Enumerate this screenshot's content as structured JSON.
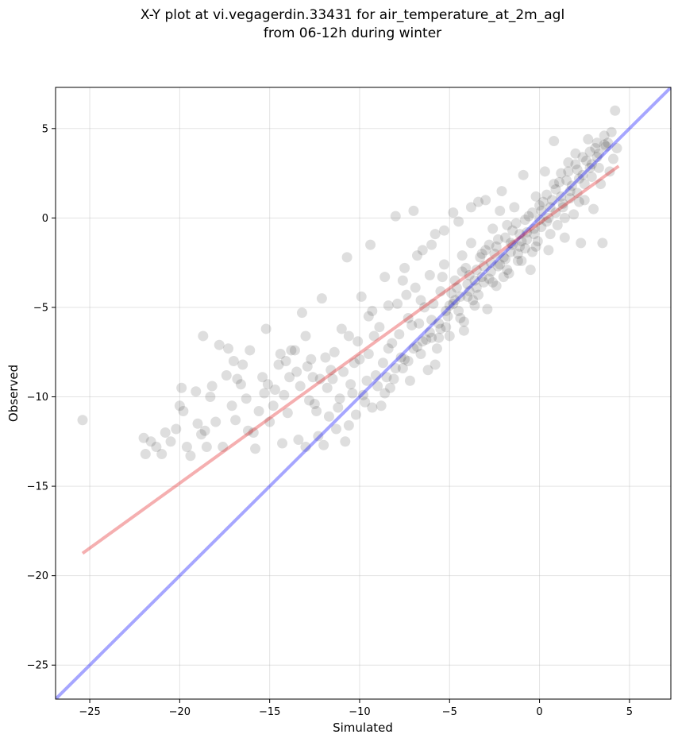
{
  "chart_data": {
    "type": "scatter",
    "title": [
      "X-Y plot at vi.vegagerdin.33431 for air_temperature_at_2m_agl",
      "from 06-12h during winter"
    ],
    "xlabel": "Simulated",
    "ylabel": "Observed",
    "xlim": [
      -26.9,
      7.3
    ],
    "ylim": [
      -26.9,
      7.3
    ],
    "xticks": [
      -25,
      -20,
      -15,
      -10,
      -5,
      0,
      5
    ],
    "yticks": [
      -25,
      -20,
      -15,
      -10,
      -5,
      0,
      5
    ],
    "grid": true,
    "colors": {
      "points": "#000000",
      "identity_line": "#0000ff",
      "fit_line": "#e31a1c"
    },
    "point_opacity": 0.08,
    "lines": [
      {
        "kind": "identity",
        "x": [
          -26.9,
          7.3
        ],
        "y": [
          -26.9,
          7.3
        ]
      },
      {
        "kind": "regression",
        "x": [
          -25.4,
          4.4
        ],
        "y": [
          -18.75,
          2.9
        ]
      }
    ],
    "series": [
      {
        "points": [
          [
            -25.4,
            -11.3
          ],
          [
            -22.0,
            -12.3
          ],
          [
            -21.9,
            -13.2
          ],
          [
            -21.6,
            -12.5
          ],
          [
            -21.3,
            -12.8
          ],
          [
            -21.0,
            -13.2
          ],
          [
            -20.5,
            -12.5
          ],
          [
            -20.2,
            -11.8
          ],
          [
            -20.0,
            -10.5
          ],
          [
            -19.9,
            -9.5
          ],
          [
            -19.6,
            -12.8
          ],
          [
            -19.4,
            -13.3
          ],
          [
            -19.1,
            -9.7
          ],
          [
            -19.0,
            -11.5
          ],
          [
            -18.8,
            -12.1
          ],
          [
            -18.7,
            -6.6
          ],
          [
            -18.5,
            -12.8
          ],
          [
            -18.3,
            -10.0
          ],
          [
            -18.0,
            -11.4
          ],
          [
            -17.8,
            -7.1
          ],
          [
            -17.6,
            -12.8
          ],
          [
            -17.4,
            -8.8
          ],
          [
            -17.3,
            -7.3
          ],
          [
            -17.1,
            -10.5
          ],
          [
            -16.9,
            -11.3
          ],
          [
            -16.6,
            -9.3
          ],
          [
            -16.5,
            -8.2
          ],
          [
            -16.3,
            -10.1
          ],
          [
            -16.1,
            -7.4
          ],
          [
            -15.9,
            -12.0
          ],
          [
            -15.8,
            -12.9
          ],
          [
            -15.6,
            -10.8
          ],
          [
            -15.4,
            -8.9
          ],
          [
            -15.2,
            -6.2
          ],
          [
            -15.0,
            -11.4
          ],
          [
            -14.7,
            -9.6
          ],
          [
            -14.5,
            -8.2
          ],
          [
            -14.4,
            -7.6
          ],
          [
            -14.2,
            -9.9
          ],
          [
            -14.0,
            -10.9
          ],
          [
            -13.8,
            -7.4
          ],
          [
            -13.5,
            -8.6
          ],
          [
            -13.4,
            -12.4
          ],
          [
            -13.2,
            -5.3
          ],
          [
            -13.0,
            -6.6
          ],
          [
            -12.8,
            -10.2
          ],
          [
            -12.6,
            -8.9
          ],
          [
            -12.3,
            -12.2
          ],
          [
            -12.1,
            -4.5
          ],
          [
            -11.9,
            -7.8
          ],
          [
            -11.7,
            -11.1
          ],
          [
            -11.5,
            -9.0
          ],
          [
            -11.2,
            -10.6
          ],
          [
            -11.0,
            -6.2
          ],
          [
            -10.8,
            -12.5
          ],
          [
            -10.7,
            -2.2
          ],
          [
            -10.5,
            -9.3
          ],
          [
            -10.3,
            -8.1
          ],
          [
            -10.1,
            -6.9
          ],
          [
            -9.9,
            -4.4
          ],
          [
            -9.7,
            -10.3
          ],
          [
            -9.5,
            -7.6
          ],
          [
            -9.4,
            -1.5
          ],
          [
            -9.3,
            -5.2
          ],
          [
            -9.1,
            -8.8
          ],
          [
            -8.9,
            -6.1
          ],
          [
            -8.8,
            -10.5
          ],
          [
            -8.6,
            -3.3
          ],
          [
            -8.4,
            -7.3
          ],
          [
            -8.3,
            -9.5
          ],
          [
            -8.0,
            0.1
          ],
          [
            -7.9,
            -4.8
          ],
          [
            -7.8,
            -6.5
          ],
          [
            -7.6,
            -8.4
          ],
          [
            -7.5,
            -2.8
          ],
          [
            -7.3,
            -5.6
          ],
          [
            -7.2,
            -9.1
          ],
          [
            -7.0,
            0.4
          ],
          [
            -6.9,
            -3.9
          ],
          [
            -6.8,
            -7.2
          ],
          [
            -6.6,
            -4.6
          ],
          [
            -6.5,
            -1.8
          ],
          [
            -6.3,
            -6.8
          ],
          [
            -6.2,
            -8.5
          ],
          [
            -6.1,
            -3.2
          ],
          [
            -6.0,
            -5.7
          ],
          [
            -5.8,
            -0.9
          ],
          [
            -5.7,
            -7.3
          ],
          [
            -5.5,
            -4.1
          ],
          [
            -5.3,
            -2.6
          ],
          [
            -5.2,
            -6.1
          ],
          [
            -5.0,
            -4.9
          ],
          [
            -4.8,
            0.3
          ],
          [
            -4.7,
            -3.5
          ],
          [
            -4.5,
            -5.2
          ],
          [
            -4.3,
            -2.1
          ],
          [
            -4.2,
            -6.3
          ],
          [
            -4.0,
            -3.7
          ],
          [
            -3.8,
            -1.4
          ],
          [
            -3.7,
            -4.6
          ],
          [
            -3.5,
            -2.9
          ],
          [
            -3.4,
            0.9
          ],
          [
            -3.2,
            -3.3
          ],
          [
            -3.0,
            -1.8
          ],
          [
            -2.9,
            -5.1
          ],
          [
            -2.7,
            -2.5
          ],
          [
            -2.6,
            -0.6
          ],
          [
            -2.4,
            -3.8
          ],
          [
            -2.3,
            -1.2
          ],
          [
            -2.1,
            1.5
          ],
          [
            -2.0,
            -2.2
          ],
          [
            -1.8,
            -0.4
          ],
          [
            -1.7,
            -3.1
          ],
          [
            -1.5,
            -1.5
          ],
          [
            -1.4,
            0.6
          ],
          [
            -1.2,
            -2.4
          ],
          [
            -1.1,
            -0.9
          ],
          [
            -0.9,
            2.4
          ],
          [
            -0.8,
            -1.7
          ],
          [
            -0.6,
            0.1
          ],
          [
            -0.5,
            -2.9
          ],
          [
            -0.3,
            -0.6
          ],
          [
            -0.2,
            1.2
          ],
          [
            -0.1,
            -1.3
          ],
          [
            0.1,
            0.4
          ],
          [
            0.3,
            2.6
          ],
          [
            0.4,
            -0.2
          ],
          [
            0.5,
            -1.8
          ],
          [
            0.7,
            1.0
          ],
          [
            0.8,
            4.3
          ],
          [
            1.0,
            -0.4
          ],
          [
            1.1,
            2.0
          ],
          [
            1.3,
            0.8
          ],
          [
            1.4,
            -1.1
          ],
          [
            1.6,
            3.1
          ],
          [
            1.7,
            1.5
          ],
          [
            1.9,
            0.2
          ],
          [
            2.0,
            3.6
          ],
          [
            2.2,
            2.2
          ],
          [
            2.3,
            -1.4
          ],
          [
            2.5,
            1.0
          ],
          [
            2.7,
            4.4
          ],
          [
            2.8,
            2.8
          ],
          [
            3.0,
            0.5
          ],
          [
            3.2,
            3.4
          ],
          [
            3.4,
            1.9
          ],
          [
            3.5,
            -1.4
          ],
          [
            3.7,
            4.0
          ],
          [
            3.9,
            2.6
          ],
          [
            4.1,
            3.3
          ],
          [
            4.2,
            6.0
          ],
          [
            4.3,
            3.9
          ],
          [
            -19.8,
            -10.8
          ],
          [
            -18.2,
            -9.4
          ],
          [
            -17.0,
            -8.0
          ],
          [
            -16.2,
            -11.9
          ],
          [
            -15.3,
            -9.8
          ],
          [
            -14.8,
            -10.5
          ],
          [
            -13.9,
            -8.9
          ],
          [
            -13.3,
            -9.4
          ],
          [
            -12.7,
            -7.9
          ],
          [
            -12.4,
            -10.8
          ],
          [
            -11.8,
            -9.5
          ],
          [
            -11.4,
            -7.5
          ],
          [
            -10.9,
            -8.6
          ],
          [
            -10.4,
            -9.8
          ],
          [
            -10.0,
            -7.9
          ],
          [
            -9.6,
            -9.1
          ],
          [
            -9.2,
            -6.6
          ],
          [
            -8.7,
            -8.1
          ],
          [
            -8.2,
            -7.0
          ],
          [
            -7.7,
            -7.8
          ],
          [
            -7.4,
            -4.3
          ],
          [
            -7.1,
            -6.0
          ],
          [
            -6.7,
            -5.9
          ],
          [
            -6.4,
            -5.0
          ],
          [
            -5.9,
            -4.8
          ],
          [
            -5.6,
            -5.9
          ],
          [
            -5.4,
            -3.3
          ],
          [
            -4.9,
            -4.2
          ],
          [
            -4.6,
            -3.9
          ],
          [
            -4.4,
            -4.4
          ],
          [
            -4.1,
            -2.8
          ],
          [
            -3.9,
            -3.2
          ],
          [
            -3.6,
            -3.5
          ],
          [
            -3.3,
            -2.2
          ],
          [
            -3.1,
            -2.7
          ],
          [
            -2.8,
            -1.5
          ],
          [
            -2.5,
            -2.0
          ],
          [
            -2.2,
            -2.6
          ],
          [
            -1.9,
            -1.1
          ],
          [
            -1.6,
            -1.9
          ],
          [
            -1.3,
            -0.3
          ],
          [
            -1.0,
            -1.3
          ],
          [
            -0.7,
            -0.8
          ],
          [
            -0.4,
            0.3
          ],
          [
            0.0,
            -0.1
          ],
          [
            0.2,
            0.9
          ],
          [
            0.6,
            0.6
          ],
          [
            0.9,
            1.6
          ],
          [
            1.2,
            1.2
          ],
          [
            1.5,
            2.1
          ],
          [
            1.8,
            1.8
          ],
          [
            2.1,
            2.7
          ],
          [
            2.4,
            2.4
          ],
          [
            2.6,
            3.2
          ],
          [
            2.9,
            3.0
          ],
          [
            3.1,
            3.9
          ],
          [
            3.3,
            3.6
          ],
          [
            3.6,
            4.6
          ],
          [
            3.8,
            4.2
          ],
          [
            4.0,
            4.8
          ],
          [
            -6.0,
            -6.7
          ],
          [
            -5.5,
            -6.2
          ],
          [
            -5.1,
            -5.5
          ],
          [
            -4.7,
            -4.6
          ],
          [
            -4.3,
            -3.0
          ],
          [
            -3.9,
            -4.1
          ],
          [
            -3.5,
            -3.9
          ],
          [
            -3.1,
            -3.6
          ],
          [
            -2.7,
            -3.0
          ],
          [
            -2.3,
            -2.7
          ],
          [
            -1.9,
            -2.3
          ],
          [
            -1.5,
            -0.7
          ],
          [
            -1.1,
            -1.6
          ],
          [
            -0.7,
            -1.2
          ],
          [
            -0.3,
            -0.9
          ],
          [
            0.1,
            -0.5
          ],
          [
            0.5,
            0.0
          ],
          [
            0.9,
            0.3
          ],
          [
            1.3,
            0.6
          ],
          [
            1.7,
            1.1
          ],
          [
            2.1,
            1.4
          ],
          [
            2.5,
            1.9
          ],
          [
            2.9,
            2.3
          ],
          [
            3.3,
            2.8
          ],
          [
            -8.5,
            -8.9
          ],
          [
            -8.0,
            -8.4
          ],
          [
            -7.5,
            -7.9
          ],
          [
            -7.0,
            -7.3
          ],
          [
            -6.5,
            -6.9
          ],
          [
            -6.1,
            -6.4
          ],
          [
            -5.6,
            -6.7
          ],
          [
            -5.2,
            -5.2
          ],
          [
            -4.8,
            -4.8
          ],
          [
            -4.4,
            -5.6
          ],
          [
            -4.0,
            -4.4
          ],
          [
            -3.6,
            -4.9
          ],
          [
            -3.2,
            -2.0
          ],
          [
            -2.8,
            -3.4
          ],
          [
            -2.4,
            -1.6
          ],
          [
            -2.0,
            -3.3
          ],
          [
            -1.6,
            -1.4
          ],
          [
            -1.2,
            -2.0
          ],
          [
            -0.8,
            -0.1
          ],
          [
            -0.4,
            -1.9
          ],
          [
            0.0,
            0.7
          ],
          [
            0.4,
            1.3
          ],
          [
            0.8,
            1.9
          ],
          [
            1.2,
            2.5
          ],
          [
            1.6,
            2.6
          ],
          [
            2.0,
            3.0
          ],
          [
            2.4,
            3.4
          ],
          [
            2.8,
            3.7
          ],
          [
            3.2,
            4.2
          ],
          [
            3.6,
            4.1
          ],
          [
            -9.8,
            -9.9
          ],
          [
            -9.0,
            -9.4
          ],
          [
            -8.1,
            -9.0
          ],
          [
            -7.3,
            -8.0
          ],
          [
            -6.6,
            -7.6
          ],
          [
            -5.8,
            -8.2
          ],
          [
            -5.0,
            -6.6
          ],
          [
            -4.2,
            -5.8
          ],
          [
            -3.4,
            -4.3
          ],
          [
            -2.6,
            -3.6
          ],
          [
            -1.8,
            -2.9
          ],
          [
            -1.0,
            -2.4
          ],
          [
            -0.2,
            -1.6
          ],
          [
            0.6,
            -0.9
          ],
          [
            1.4,
            0.0
          ],
          [
            2.2,
            0.9
          ],
          [
            -11.6,
            -8.5
          ],
          [
            -10.6,
            -6.6
          ],
          [
            -9.5,
            -5.5
          ],
          [
            -8.4,
            -4.9
          ],
          [
            -7.6,
            -3.5
          ],
          [
            -6.8,
            -2.1
          ],
          [
            -6.0,
            -1.5
          ],
          [
            -5.3,
            -0.7
          ],
          [
            -4.5,
            -0.2
          ],
          [
            -3.8,
            0.6
          ],
          [
            -3.0,
            1.0
          ],
          [
            -2.2,
            0.4
          ],
          [
            -16.8,
            -9.0
          ],
          [
            -15.1,
            -9.3
          ],
          [
            -14.1,
            -8.0
          ],
          [
            -13.6,
            -7.4
          ],
          [
            -12.9,
            -8.3
          ],
          [
            -12.2,
            -9.0
          ],
          [
            -11.1,
            -10.1
          ],
          [
            -10.2,
            -11.0
          ],
          [
            -9.3,
            -10.6
          ],
          [
            -8.6,
            -9.8
          ],
          [
            -12.5,
            -10.4
          ],
          [
            -11.3,
            -11.8
          ],
          [
            -10.6,
            -11.6
          ],
          [
            -13.0,
            -12.8
          ],
          [
            -12.0,
            -12.7
          ],
          [
            -14.3,
            -12.6
          ],
          [
            -18.6,
            -11.9
          ],
          [
            -20.8,
            -12.0
          ]
        ]
      }
    ]
  }
}
